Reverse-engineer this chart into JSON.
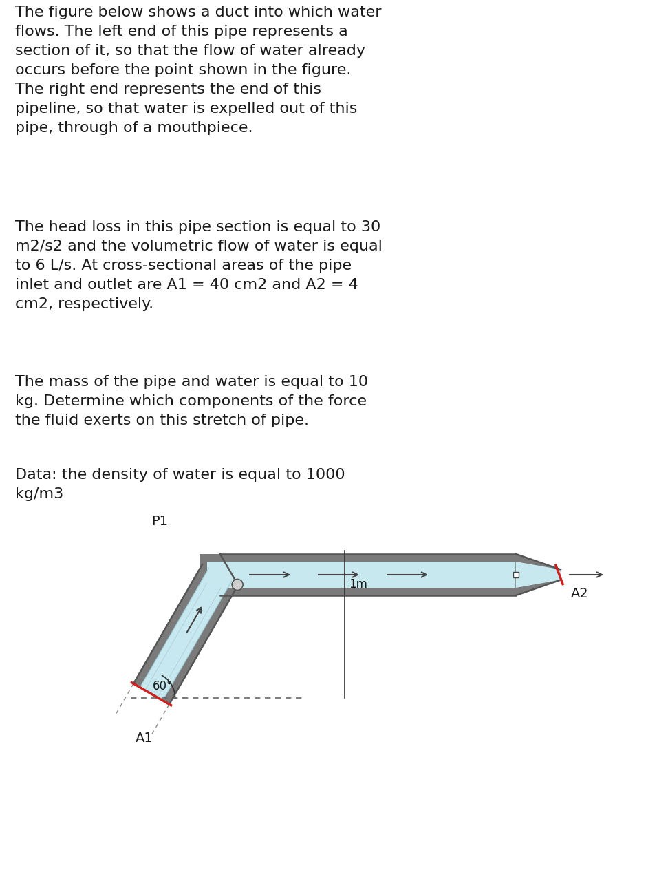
{
  "background_color": "#ffffff",
  "text_color": "#1a1a1a",
  "paragraph1": "The figure below shows a duct into which water\nflows. The left end of this pipe represents a\nsection of it, so that the flow of water already\noccurs before the point shown in the figure.\nThe right end represents the end of this\npipeline, so that water is expelled out of this\npipe, through of a mouthpiece.",
  "paragraph2": "The head loss in this pipe section is equal to 30\nm2/s2 and the volumetric flow of water is equal\nto 6 L/s. At cross-sectional areas of the pipe\ninlet and outlet are A1 = 40 cm2 and A2 = 4\ncm2, respectively.",
  "paragraph3": "The mass of the pipe and water is equal to 10\nkg. Determine which components of the force\nthe fluid exerts on this stretch of pipe.",
  "paragraph4": "Data: the density of water is equal to 1000\nkg/m3",
  "pipe_gray": "#7a7a7a",
  "pipe_light_gray": "#a0a0a0",
  "pipe_inner_color": "#c8e8f0",
  "pipe_inner_dark": "#a0ccd8",
  "arrow_color": "#444444",
  "red_color": "#cc2222",
  "dashed_color": "#666666",
  "font_size": 16,
  "diagram_bg": "#f5f5f5"
}
